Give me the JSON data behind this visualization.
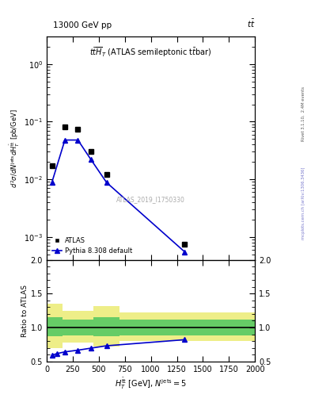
{
  "title_left": "13000 GeV pp",
  "title_right": "t$\\bar{t}$",
  "plot_label": "tt$\\overline{H}$T (ATLAS semileptonic t$\\bar{t}$bar)",
  "watermark": "ATLAS_2019_I1750330",
  "right_label_top": "Rivet 3.1.10,  2.4M events",
  "right_label_bottom": "mcplots.cern.ch [arXiv:1306.3436]",
  "xlabel": "$H_T^{\\mathrm{\\bar{t}t}}$ [GeV], $N^{\\mathrm{jets}} = 5$",
  "ylabel_main": "$d^2\\sigma / d N^{\\mathrm{jets}} d H_T^{\\mathrm{\\bar{t}t}}$ [pb/GeV]",
  "ylabel_ratio": "Ratio to ATLAS",
  "atlas_x": [
    50,
    175,
    300,
    425,
    575,
    1325
  ],
  "atlas_y": [
    0.017,
    0.082,
    0.075,
    0.03,
    0.012,
    0.00075
  ],
  "pythia_x": [
    50,
    175,
    300,
    425,
    575,
    1325
  ],
  "pythia_y": [
    0.0088,
    0.048,
    0.048,
    0.022,
    0.0088,
    0.00055
  ],
  "ratio_x": [
    50,
    100,
    175,
    300,
    425,
    575,
    1325
  ],
  "ratio_y": [
    0.59,
    0.615,
    0.64,
    0.665,
    0.695,
    0.73,
    0.82
  ],
  "band_edges": [
    0,
    150,
    450,
    700,
    2000
  ],
  "band_green_upper": [
    1.15,
    1.12,
    1.15,
    1.12
  ],
  "band_green_lower": [
    0.87,
    0.88,
    0.87,
    0.88
  ],
  "band_yellow_upper": [
    1.35,
    1.25,
    1.32,
    1.22
  ],
  "band_yellow_lower": [
    0.7,
    0.78,
    0.72,
    0.8
  ],
  "xlim": [
    0,
    2000
  ],
  "ylim_main_log": [
    0.0004,
    3
  ],
  "ylim_ratio": [
    0.5,
    2.0
  ],
  "color_pythia": "#0000cc",
  "color_atlas": "#000000",
  "color_green": "#66cc66",
  "color_yellow": "#eeee88",
  "background_color": "#ffffff"
}
